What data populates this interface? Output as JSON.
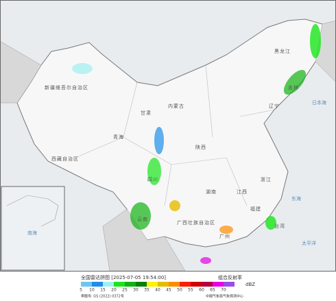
{
  "map": {
    "labels": [
      "新疆维吾尔自治区",
      "西藏自治区",
      "青海",
      "内蒙古",
      "黑龙江",
      "吉林",
      "辽宁",
      "甘肃",
      "陕西",
      "四川",
      "云南",
      "广西壮族自治区",
      "湖南",
      "江西",
      "浙江",
      "福建",
      "台湾",
      "日本海",
      "东海",
      "太平洋",
      "南海",
      "广州"
    ]
  },
  "legend": {
    "title": "全国雷达拼图 [2025-07-05 19:54:00]",
    "product": "组合反射率",
    "unit": "dBZ",
    "ticks": [
      5,
      10,
      15,
      20,
      25,
      30,
      35,
      40,
      45,
      50,
      55,
      60,
      65,
      70
    ],
    "colors": [
      "#6ec6f0",
      "#1e8ee8",
      "#a0f0f0",
      "#19e619",
      "#11b211",
      "#0a800a",
      "#fff200",
      "#e6bc00",
      "#ff8c00",
      "#ff1e00",
      "#d20000",
      "#b4003c",
      "#e600e6",
      "#9a4ce6"
    ],
    "note": "审图号: GS (2022) 0372号",
    "source": "中国气象局气象探测中心"
  }
}
